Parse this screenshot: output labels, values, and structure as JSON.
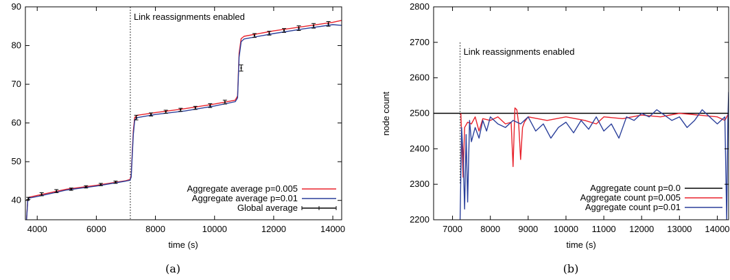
{
  "chart_data": [
    {
      "type": "line",
      "caption": "(a)",
      "xlabel": "time (s)",
      "ylabel": "",
      "xlim": [
        3600,
        14300
      ],
      "ylim": [
        35,
        90
      ],
      "xticks": [
        4000,
        6000,
        8000,
        10000,
        12000,
        14000
      ],
      "yticks": [
        40,
        50,
        60,
        70,
        80,
        90
      ],
      "grid": false,
      "legend_position": "bottom-right",
      "annotation": {
        "text": "Link reassignments enabled",
        "x": 7150
      },
      "series": [
        {
          "name": "Aggregate average p=0.005",
          "color": "#e8202a",
          "style": "line",
          "points": [
            [
              3640,
              35
            ],
            [
              3680,
              40
            ],
            [
              3720,
              40.8
            ],
            [
              4000,
              41.3
            ],
            [
              5000,
              42.9
            ],
            [
              6000,
              43.9
            ],
            [
              7000,
              45.1
            ],
            [
              7140,
              45.4
            ],
            [
              7180,
              46.5
            ],
            [
              7250,
              58
            ],
            [
              7300,
              61.5
            ],
            [
              7400,
              62.0
            ],
            [
              8000,
              62.7
            ],
            [
              9000,
              63.7
            ],
            [
              10000,
              64.9
            ],
            [
              10700,
              65.9
            ],
            [
              10780,
              67
            ],
            [
              10830,
              78
            ],
            [
              10900,
              81.8
            ],
            [
              11000,
              82.4
            ],
            [
              12000,
              83.8
            ],
            [
              13000,
              84.9
            ],
            [
              14000,
              86.0
            ],
            [
              14300,
              86.5
            ]
          ]
        },
        {
          "name": "Aggregate average p=0.01",
          "color": "#2a3f9a",
          "style": "line",
          "points": [
            [
              3640,
              35
            ],
            [
              3680,
              39.8
            ],
            [
              3720,
              40.6
            ],
            [
              4000,
              41.0
            ],
            [
              5000,
              42.7
            ],
            [
              6000,
              43.7
            ],
            [
              7000,
              45.0
            ],
            [
              7140,
              45.2
            ],
            [
              7180,
              46
            ],
            [
              7250,
              57
            ],
            [
              7300,
              60.8
            ],
            [
              7400,
              61.4
            ],
            [
              8000,
              62.2
            ],
            [
              9000,
              63.1
            ],
            [
              10000,
              64.4
            ],
            [
              10700,
              65.5
            ],
            [
              10780,
              66.5
            ],
            [
              10830,
              77
            ],
            [
              10900,
              81.0
            ],
            [
              11000,
              81.7
            ],
            [
              12000,
              83.1
            ],
            [
              13000,
              84.3
            ],
            [
              14000,
              85.4
            ],
            [
              14300,
              85.2
            ]
          ]
        },
        {
          "name": "Global average",
          "color": "#000000",
          "style": "errorbar",
          "points": [
            [
              3700,
              40.5,
              0.3
            ],
            [
              4150,
              41.6,
              0.4
            ],
            [
              4650,
              42.4,
              0.4
            ],
            [
              5150,
              42.9,
              0.3
            ],
            [
              5650,
              43.5,
              0.3
            ],
            [
              6150,
              44.1,
              0.3
            ],
            [
              6650,
              44.7,
              0.3
            ],
            [
              7350,
              61.4,
              0.6
            ],
            [
              7850,
              62.2,
              0.4
            ],
            [
              8350,
              62.9,
              0.4
            ],
            [
              8850,
              63.4,
              0.4
            ],
            [
              9350,
              63.9,
              0.4
            ],
            [
              9850,
              64.5,
              0.5
            ],
            [
              10350,
              65.4,
              0.5
            ],
            [
              10900,
              74.2,
              0.8
            ],
            [
              11350,
              82.6,
              0.5
            ],
            [
              11850,
              83.2,
              0.5
            ],
            [
              12350,
              83.9,
              0.5
            ],
            [
              12850,
              84.5,
              0.6
            ],
            [
              13350,
              85.1,
              0.6
            ],
            [
              13850,
              85.6,
              0.6
            ]
          ]
        }
      ]
    },
    {
      "type": "line",
      "caption": "(b)",
      "xlabel": "time (s)",
      "ylabel": "node count",
      "xlim": [
        6500,
        14300
      ],
      "ylim": [
        2200,
        2800
      ],
      "xticks": [
        7000,
        8000,
        9000,
        10000,
        11000,
        12000,
        13000,
        14000
      ],
      "yticks": [
        2200,
        2300,
        2400,
        2500,
        2600,
        2700,
        2800
      ],
      "grid": false,
      "legend_position": "bottom-right",
      "annotation": {
        "text": "Link reassignments enabled",
        "x": 7200,
        "y_range": [
          2300,
          2700
        ]
      },
      "series": [
        {
          "name": "Aggregate count p=0.0",
          "color": "#000000",
          "style": "line",
          "points": [
            [
              6500,
              2500
            ],
            [
              14300,
              2500
            ]
          ]
        },
        {
          "name": "Aggregate count p=0.005",
          "color": "#e8202a",
          "style": "line",
          "points": [
            [
              7220,
              2500
            ],
            [
              7280,
              2320
            ],
            [
              7320,
              2460
            ],
            [
              7400,
              2475
            ],
            [
              7500,
              2470
            ],
            [
              7600,
              2490
            ],
            [
              7700,
              2450
            ],
            [
              7800,
              2485
            ],
            [
              8000,
              2480
            ],
            [
              8200,
              2490
            ],
            [
              8400,
              2470
            ],
            [
              8550,
              2475
            ],
            [
              8600,
              2350
            ],
            [
              8650,
              2515
            ],
            [
              8700,
              2510
            ],
            [
              8750,
              2470
            ],
            [
              8800,
              2370
            ],
            [
              8850,
              2460
            ],
            [
              8900,
              2475
            ],
            [
              9000,
              2490
            ],
            [
              9500,
              2480
            ],
            [
              10000,
              2490
            ],
            [
              10500,
              2480
            ],
            [
              10800,
              2470
            ],
            [
              11000,
              2490
            ],
            [
              11500,
              2485
            ],
            [
              12000,
              2495
            ],
            [
              12500,
              2490
            ],
            [
              13000,
              2500
            ],
            [
              13500,
              2495
            ],
            [
              14000,
              2490
            ],
            [
              14200,
              2480
            ],
            [
              14300,
              2500
            ]
          ]
        },
        {
          "name": "Aggregate count p=0.01",
          "color": "#2a3f9a",
          "style": "line",
          "points": [
            [
              7200,
              2200
            ],
            [
              7240,
              2460
            ],
            [
              7280,
              2380
            ],
            [
              7320,
              2230
            ],
            [
              7360,
              2440
            ],
            [
              7400,
              2250
            ],
            [
              7450,
              2480
            ],
            [
              7500,
              2420
            ],
            [
              7600,
              2460
            ],
            [
              7700,
              2430
            ],
            [
              7800,
              2480
            ],
            [
              7900,
              2450
            ],
            [
              8000,
              2490
            ],
            [
              8200,
              2470
            ],
            [
              8400,
              2460
            ],
            [
              8600,
              2480
            ],
            [
              8800,
              2470
            ],
            [
              9000,
              2490
            ],
            [
              9200,
              2450
            ],
            [
              9400,
              2470
            ],
            [
              9600,
              2430
            ],
            [
              9800,
              2460
            ],
            [
              10000,
              2475
            ],
            [
              10200,
              2445
            ],
            [
              10400,
              2480
            ],
            [
              10600,
              2455
            ],
            [
              10800,
              2490
            ],
            [
              11000,
              2450
            ],
            [
              11200,
              2470
            ],
            [
              11400,
              2430
            ],
            [
              11600,
              2490
            ],
            [
              11800,
              2480
            ],
            [
              12000,
              2500
            ],
            [
              12200,
              2490
            ],
            [
              12400,
              2510
            ],
            [
              12600,
              2495
            ],
            [
              12800,
              2480
            ],
            [
              13000,
              2490
            ],
            [
              13200,
              2460
            ],
            [
              13400,
              2480
            ],
            [
              13600,
              2510
            ],
            [
              13800,
              2490
            ],
            [
              14000,
              2470
            ],
            [
              14200,
              2490
            ],
            [
              14250,
              2200
            ],
            [
              14280,
              2480
            ],
            [
              14300,
              2560
            ]
          ]
        }
      ]
    }
  ]
}
